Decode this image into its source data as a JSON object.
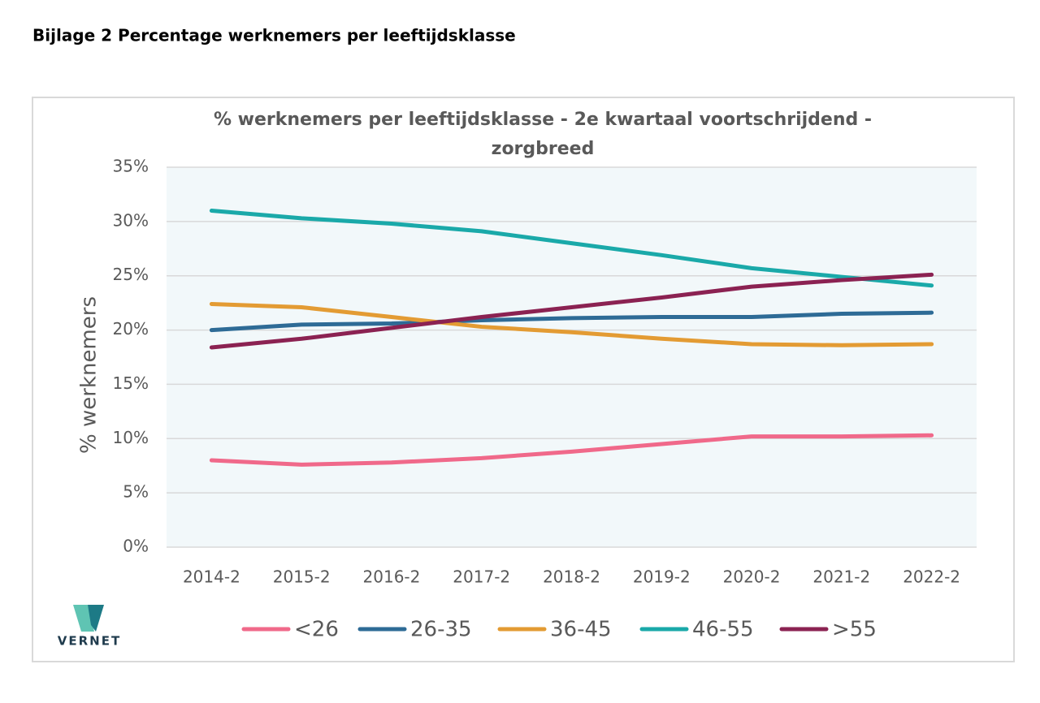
{
  "heading": "Bijlage 2  Percentage werknemers per leeftijdsklasse",
  "logo": "VERNET",
  "chart_data": {
    "type": "line",
    "title": [
      "% werknemers per leeftijdsklasse - 2e kwartaal voortschrijdend  -",
      "zorgbreed"
    ],
    "y_label": "% werknemers",
    "categories": [
      "2014-2",
      "2015-2",
      "2016-2",
      "2017-2",
      "2018-2",
      "2019-2",
      "2020-2",
      "2021-2",
      "2022-2"
    ],
    "series": [
      {
        "name": "<26",
        "color": "#f0698a",
        "values": [
          8.0,
          7.6,
          7.8,
          8.2,
          8.8,
          9.5,
          10.2,
          10.2,
          10.3
        ]
      },
      {
        "name": "26-35",
        "color": "#2e6b96",
        "values": [
          20.0,
          20.5,
          20.6,
          20.9,
          21.1,
          21.2,
          21.2,
          21.5,
          21.6
        ]
      },
      {
        "name": "36-45",
        "color": "#e39b33",
        "values": [
          22.4,
          22.1,
          21.2,
          20.3,
          19.8,
          19.2,
          18.7,
          18.6,
          18.7
        ]
      },
      {
        "name": "46-55",
        "color": "#1aa9a9",
        "values": [
          31.0,
          30.3,
          29.8,
          29.1,
          28.0,
          26.9,
          25.7,
          24.9,
          24.1
        ]
      },
      {
        "name": ">55",
        "color": "#8b2252",
        "values": [
          18.4,
          19.2,
          20.2,
          21.2,
          22.1,
          23.0,
          24.0,
          24.6,
          25.1
        ]
      }
    ],
    "ylim": [
      0,
      35
    ],
    "yticks": [
      {
        "value": 0,
        "label": "0%"
      },
      {
        "value": 5,
        "label": "5%"
      },
      {
        "value": 10,
        "label": "10%"
      },
      {
        "value": 15,
        "label": "15%"
      },
      {
        "value": 20,
        "label": "20%"
      },
      {
        "value": 25,
        "label": "25%"
      },
      {
        "value": 30,
        "label": "30%"
      },
      {
        "value": 35,
        "label": "35%"
      }
    ],
    "grid": true,
    "legend": "bottom"
  }
}
